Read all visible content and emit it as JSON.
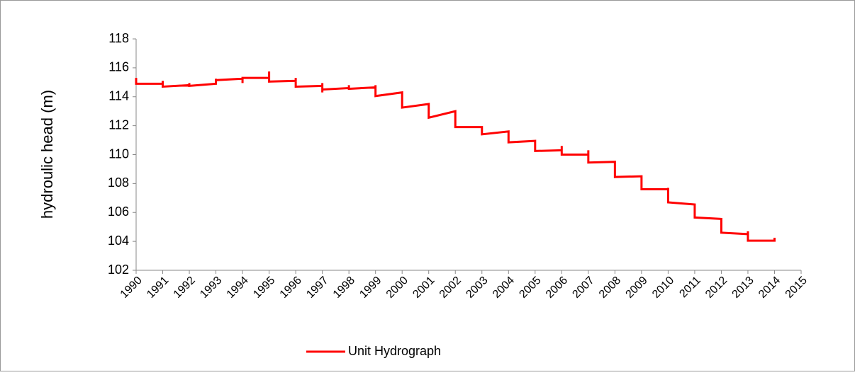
{
  "chart_data": {
    "type": "line",
    "y_label": "hydroulic head (m)",
    "x": [
      1990,
      1990,
      1991,
      1991,
      1991,
      1992,
      1992,
      1992,
      1993,
      1993,
      1993,
      1994,
      1994,
      1994,
      1995,
      1995,
      1995,
      1996,
      1996,
      1996,
      1997,
      1997,
      1997,
      1997,
      1998,
      1998,
      1998,
      1999,
      1999,
      1999,
      2000,
      2000,
      2001,
      2001,
      2002,
      2002,
      2003,
      2003,
      2004,
      2004,
      2005,
      2005,
      2006,
      2006,
      2006,
      2007,
      2007,
      2007,
      2008,
      2008,
      2009,
      2009,
      2010,
      2010,
      2010,
      2011,
      2011,
      2012,
      2012,
      2013,
      2013,
      2013,
      2014,
      2014
    ],
    "series": [
      {
        "name": "Unit Hydrograph",
        "color": "#ff0000",
        "values": [
          115.3,
          114.9,
          114.9,
          115.1,
          114.7,
          114.8,
          114.95,
          114.75,
          114.9,
          115.25,
          115.15,
          115.25,
          114.95,
          115.3,
          115.3,
          115.75,
          115.05,
          115.1,
          115.3,
          114.7,
          114.75,
          114.95,
          114.3,
          114.5,
          114.6,
          114.8,
          114.55,
          114.65,
          114.8,
          114.05,
          114.3,
          113.25,
          113.5,
          112.55,
          113.0,
          111.9,
          111.9,
          111.4,
          111.6,
          110.85,
          110.95,
          110.25,
          110.3,
          110.6,
          110.0,
          110.0,
          110.3,
          109.45,
          109.5,
          108.45,
          108.5,
          107.6,
          107.6,
          107.7,
          106.7,
          106.55,
          105.65,
          105.55,
          104.6,
          104.5,
          104.7,
          104.05,
          104.05,
          104.25
        ]
      }
    ],
    "xlim": [
      1990,
      2015
    ],
    "xticks": [
      1990,
      1991,
      1992,
      1993,
      1994,
      1995,
      1996,
      1997,
      1998,
      1999,
      2000,
      2001,
      2002,
      2003,
      2004,
      2005,
      2006,
      2007,
      2008,
      2009,
      2010,
      2011,
      2012,
      2013,
      2014,
      2015
    ],
    "ylim": [
      102,
      118
    ],
    "yticks": [
      102,
      104,
      106,
      108,
      110,
      112,
      114,
      116,
      118
    ],
    "grid": false,
    "legend": "bottom"
  }
}
